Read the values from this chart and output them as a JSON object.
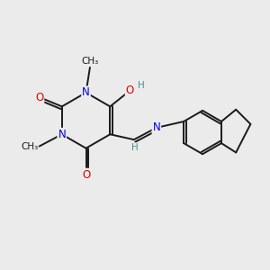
{
  "bg": "#ebebeb",
  "C": "#1a1a1a",
  "N": "#0000e0",
  "O": "#e00000",
  "H": "#4a9090",
  "lw": 1.4,
  "fs": 8.5,
  "fs_small": 7.5
}
